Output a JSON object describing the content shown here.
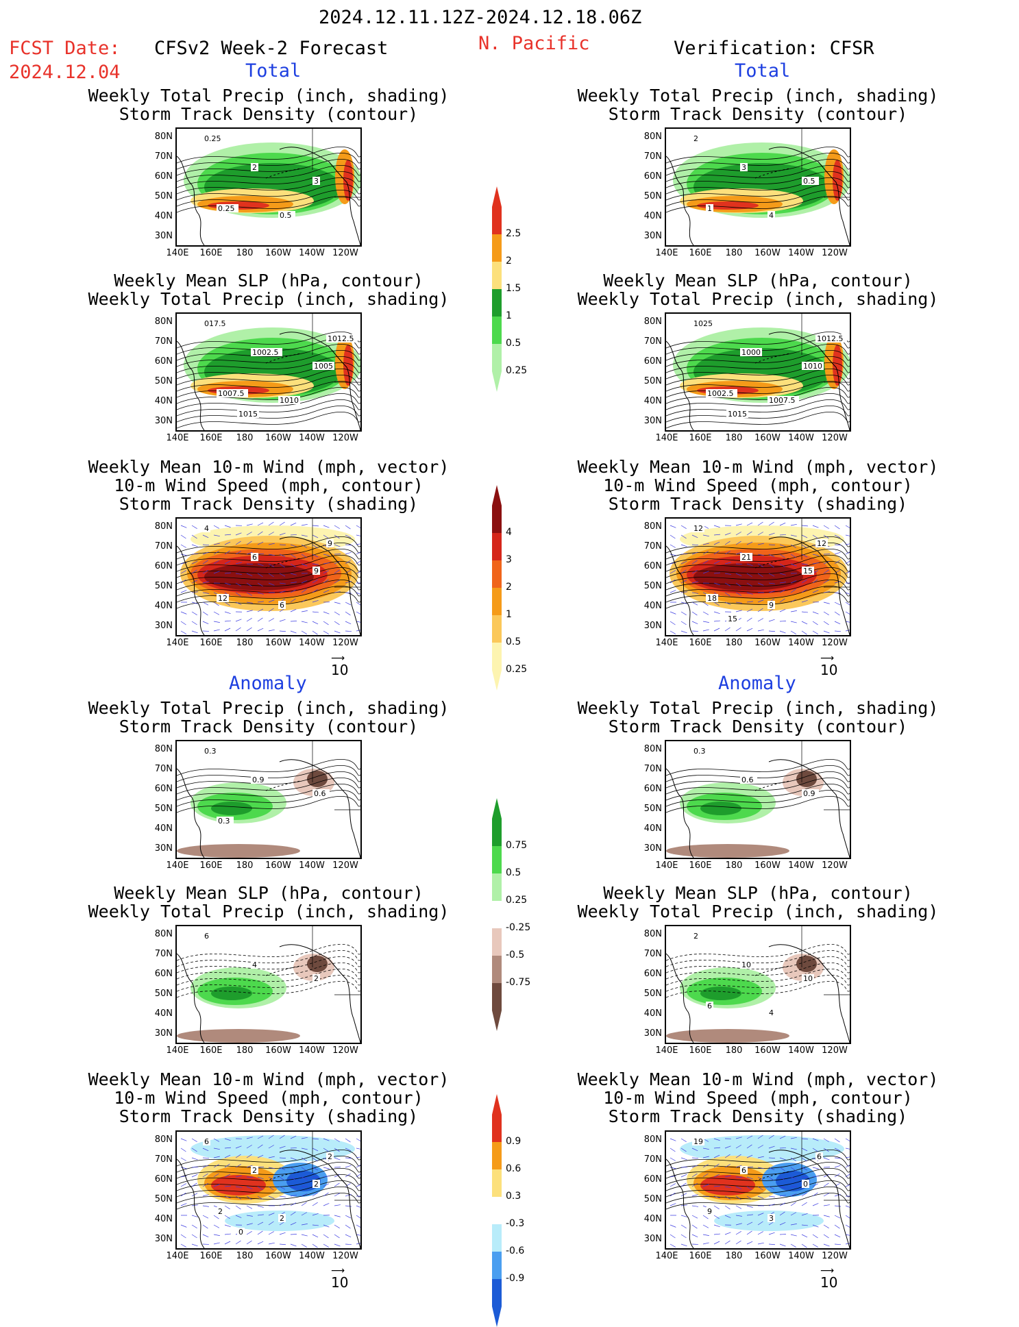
{
  "header": {
    "date_range": "2024.12.11.12Z-2024.12.18.06Z",
    "fcst_label": "FCST Date:",
    "fcst_date": "2024.12.04",
    "model_label": "CFSv2 Week-2 Forecast",
    "region": "N. Pacific",
    "verification_label": "Verification: CFSR"
  },
  "sections": {
    "total": "Total",
    "anomaly": "Anomaly"
  },
  "axes": {
    "lat_ticks": [
      "80N",
      "70N",
      "60N",
      "50N",
      "40N",
      "30N"
    ],
    "lon_ticks": [
      "140E",
      "160E",
      "180",
      "160W",
      "140W",
      "120W"
    ]
  },
  "vector_ref": "10",
  "panel_titles": {
    "precip_std": [
      "Weekly Total Precip (inch, shading)",
      "Storm Track Density (contour)"
    ],
    "slp_precip": [
      "Weekly Mean SLP (hPa, contour)",
      "Weekly Total Precip (inch, shading)"
    ],
    "wind_std": [
      "Weekly Mean 10-m Wind (mph, vector)",
      "10-m Wind Speed (mph, contour)",
      "Storm Track Density (shading)"
    ]
  },
  "colorbars": {
    "precip_total": {
      "labels": [
        "2.5",
        "2",
        "1.5",
        "1",
        "0.5",
        "0.25"
      ],
      "colors": [
        "#e0321e",
        "#f59b19",
        "#fce07c",
        "#1e9d2c",
        "#4dd94d",
        "#b0f0a8"
      ]
    },
    "std_total": {
      "labels": [
        "4",
        "3",
        "2",
        "1",
        "0.5",
        "0.25"
      ],
      "colors": [
        "#8b1010",
        "#d5261a",
        "#f0641a",
        "#f59b19",
        "#fbc85a",
        "#fdf4b0"
      ]
    },
    "precip_anom": {
      "labels": [
        "0.75",
        "0.5",
        "0.25",
        "-0.25",
        "-0.5",
        "-0.75"
      ],
      "colors": [
        "#1e9d2c",
        "#4dd94d",
        "#b0f0a8",
        "#ffffff",
        "#e8c8bc",
        "#b08a7c",
        "#6e4a3e"
      ]
    },
    "std_anom": {
      "labels": [
        "0.9",
        "0.6",
        "0.3",
        "-0.3",
        "-0.6",
        "-0.9"
      ],
      "colors": [
        "#e0321e",
        "#f59b19",
        "#fce07c",
        "#ffffff",
        "#b8ecfa",
        "#4a9ef0",
        "#1c5bd6"
      ]
    }
  },
  "contour_labels": {
    "p1": [
      "0.25",
      "2",
      "3",
      "0.25",
      "0.5"
    ],
    "p2": [
      "017.5",
      "1002.5",
      "1005",
      "1007.5",
      "1010",
      "1012.5",
      "1015"
    ],
    "p3": [
      "4",
      "6",
      "9",
      "12",
      "6",
      "9"
    ],
    "p4": [
      "0.3",
      "0.9",
      "0.6",
      "0.3"
    ],
    "p5": [
      "6",
      "4",
      "2"
    ],
    "p6": [
      "6",
      "2",
      "2",
      "2",
      "2",
      "2",
      "0"
    ],
    "v1": [
      "2",
      "3",
      "0.5",
      "1",
      "4"
    ],
    "v2": [
      "1025",
      "1000",
      "1010",
      "1002.5",
      "1007.5",
      "1012.5",
      "1015"
    ],
    "v3": [
      "12",
      "21",
      "15",
      "18",
      "9",
      "12",
      "15"
    ],
    "v4": [
      "0.3",
      "0.6",
      "0.9"
    ],
    "v5": [
      "2",
      "10",
      "10",
      "6",
      "4"
    ],
    "v6": [
      "19",
      "6",
      "0",
      "9",
      "3",
      "6"
    ]
  }
}
